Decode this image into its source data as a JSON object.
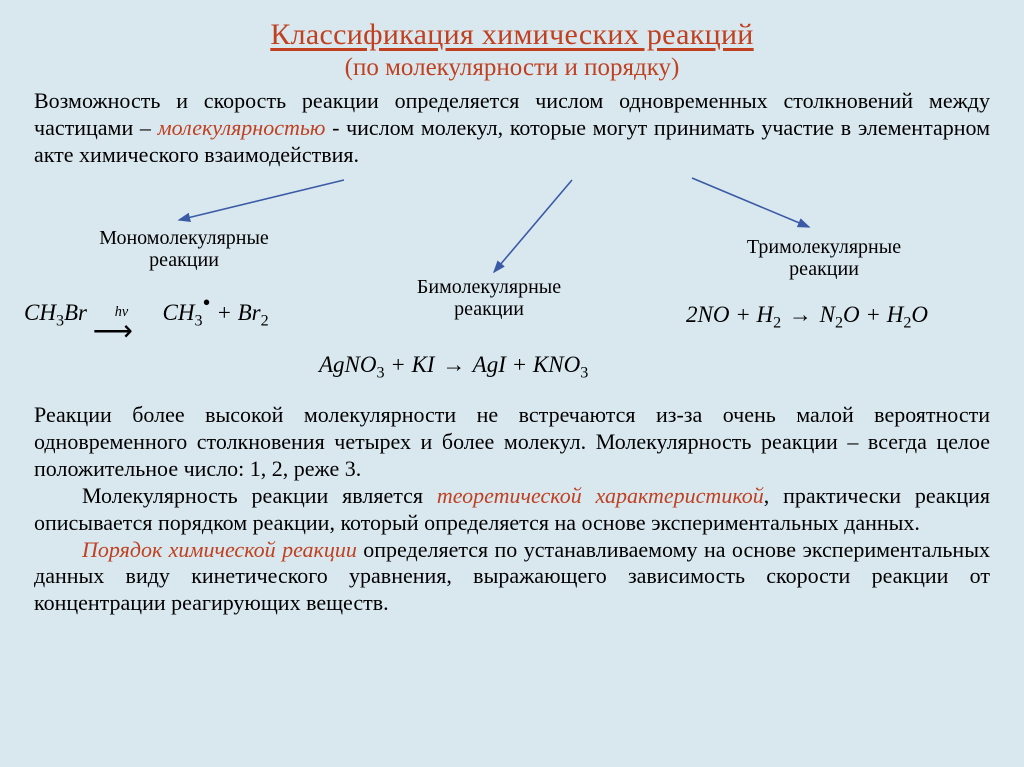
{
  "title": "Классификация химических реакций",
  "subtitle": "(по молекулярности и порядку)",
  "intro_parts": {
    "p1": "Возможность и скорость реакции определяется числом одновременных столкновений между частицами – ",
    "highlight1": "молекулярностью",
    "p2": " - числом молекул, которые могут принимать участие в элементарном акте химического взаимодействия."
  },
  "labels": {
    "mono_l1": "Мономолекулярные",
    "mono_l2": "реакции",
    "bi_l1": "Бимолекулярные",
    "bi_l2": "реакции",
    "tri_l1": "Тримолекулярные",
    "tri_l2": "реакции"
  },
  "equations": {
    "mono_html": "<span style='font-style:italic'>CH</span><span class='n'>3</span><span style='font-style:italic'>Br</span> <span style='position:relative;display:inline-block;width:64px;'><span class='hv' style='left:22px;top:-16px;'>h&nu;</span><span style='font-style:normal;font-size:28px;position:absolute;left:0;top:-6px;'>&#10230;</span></span> <span style='font-style:italic'>CH</span><span class='n'>3</span><span style='position:relative;top:-10px;font-style:normal;'>&bull;</span> + <span style='font-style:italic'>Br</span><span class='n'>2</span>",
    "bi_html": "<span style='font-style:italic'>AgNO</span><span class='n'>3</span> + <span style='font-style:italic'>KI</span> <span class='arrow'>&rarr;</span> <span style='font-style:italic'>AgI</span> + <span style='font-style:italic'>KNO</span><span class='n'>3</span>",
    "tri_html": "2<span style='font-style:italic'>NO</span> + <span style='font-style:italic'>H</span><span class='n'>2</span> <span class='arrow'>&rarr;</span> <span style='font-style:italic'>N</span><span class='n'>2</span><span style='font-style:italic'>O</span> + <span style='font-style:italic'>H</span><span class='n'>2</span><span style='font-style:italic'>O</span>"
  },
  "body": {
    "p1": "Реакции более высокой молекулярности не встречаются из-за очень малой вероятности одновременного столкновения четырех и более молекул. Молекулярность реакции – всегда целое положительное число: 1, 2, реже 3.",
    "p2a": "Молекулярность реакции является ",
    "p2_hl": "теоретической характеристикой",
    "p2b": ", практически реакция описывается порядком реакции, который определяется на основе экспериментальных данных.",
    "p3_hl": "Порядок химической реакции",
    "p3": " определяется по устанавливаемому на основе экспериментальных данных виду кинетического уравнения, выражающего зависимость скорости реакции от концентрации реагирующих веществ."
  },
  "arrow_style": {
    "stroke": "#3a5aa6",
    "stroke_width": 1.6
  }
}
